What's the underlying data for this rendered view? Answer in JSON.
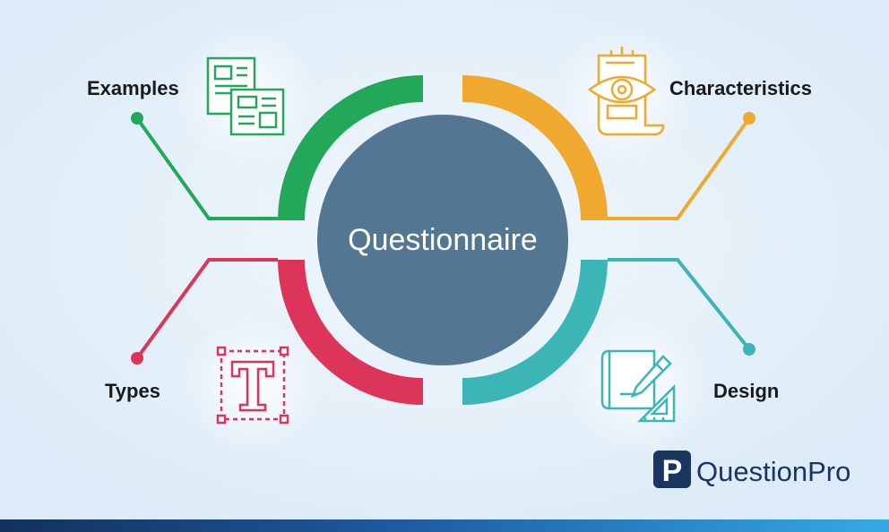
{
  "center": {
    "title": "Questionnaire"
  },
  "branches": [
    {
      "label": "Examples",
      "icon": "documents-icon",
      "color": "#22a858"
    },
    {
      "label": "Characteristics",
      "icon": "eye-document-icon",
      "color": "#f0a92e"
    },
    {
      "label": "Types",
      "icon": "text-type-icon",
      "color": "#dc3559"
    },
    {
      "label": "Design",
      "icon": "blueprint-pencil-icon",
      "color": "#3cb5b7"
    }
  ],
  "center_color": "#537793",
  "logo": {
    "text": "QuestionPro",
    "mark": "P",
    "mark_color": "#1a3560",
    "text_color": "#1a3560"
  }
}
